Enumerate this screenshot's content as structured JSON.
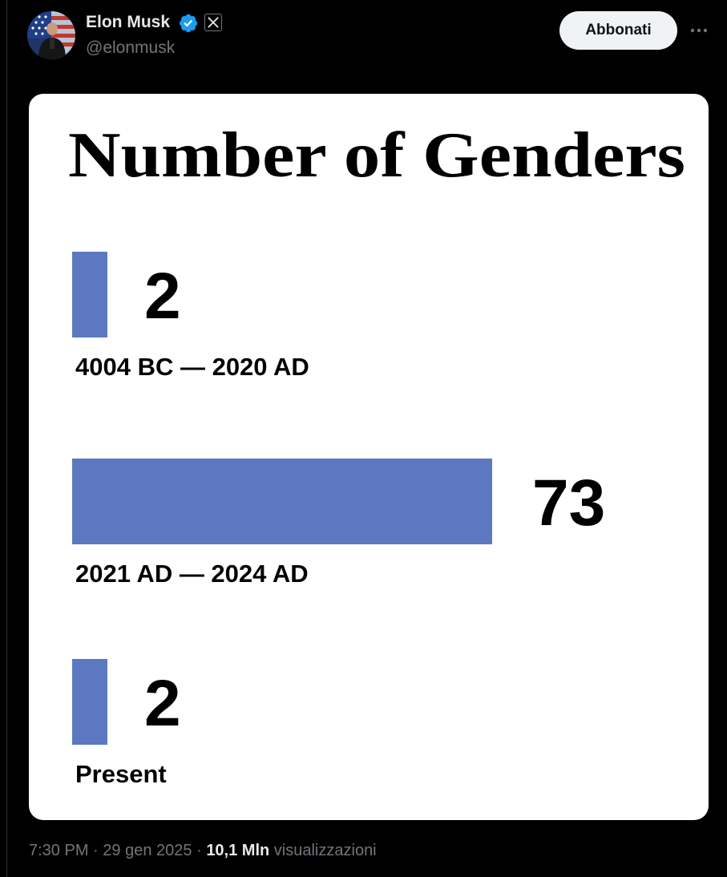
{
  "tweet": {
    "author_name": "Elon Musk",
    "author_handle": "@elonmusk",
    "follow_label": "Abbonati",
    "time": "7:30 PM",
    "date": "29 gen 2025",
    "separator": "·",
    "views_count": "10,1 Mln",
    "views_label": "visualizzazioni"
  },
  "colors": {
    "background": "#000000",
    "verified": "#1d9bf0",
    "bar": "#5b78c1",
    "follow_bg": "#eff3f4"
  },
  "icons": [
    "avatar",
    "verified-icon",
    "x-badge-icon",
    "more-icon"
  ],
  "chart_data": {
    "type": "bar",
    "orientation": "horizontal",
    "title": "Number of Genders",
    "categories": [
      "4004 BC — 2020 AD",
      "2021 AD — 2024 AD",
      "Present"
    ],
    "values": [
      2,
      73,
      2
    ],
    "value_labels": [
      "2",
      "73",
      "2"
    ],
    "xlim": [
      0,
      73
    ],
    "grid": false
  }
}
